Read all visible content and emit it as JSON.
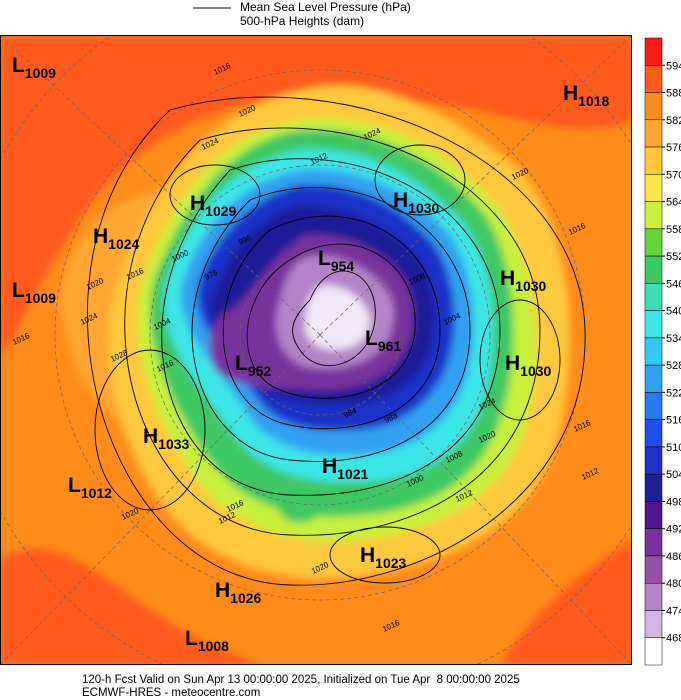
{
  "legend": {
    "pressure": "Mean Sea Level Pressure (hPa)",
    "heights": "500-hPa Heights (dam)"
  },
  "centers": [
    {
      "letter": "L",
      "value": 1009
    },
    {
      "letter": "H",
      "value": 1018
    },
    {
      "letter": "H",
      "value": 1029
    },
    {
      "letter": "H",
      "value": 1030
    },
    {
      "letter": "H",
      "value": 1024
    },
    {
      "letter": "L",
      "value": 954
    },
    {
      "letter": "H",
      "value": 1030
    },
    {
      "letter": "L",
      "value": 1009
    },
    {
      "letter": "L",
      "value": 961
    },
    {
      "letter": "L",
      "value": 952
    },
    {
      "letter": "H",
      "value": 1030
    },
    {
      "letter": "H",
      "value": 1033
    },
    {
      "letter": "H",
      "value": 1021
    },
    {
      "letter": "L",
      "value": 1012
    },
    {
      "letter": "H",
      "value": 1023
    },
    {
      "letter": "H",
      "value": 1026
    },
    {
      "letter": "L",
      "value": 1008
    }
  ],
  "contour_labels": [
    1016,
    1020,
    1024,
    1012,
    1024,
    1020,
    1016,
    1020,
    1016,
    1024,
    1028,
    1016,
    1016,
    1004,
    1000,
    976,
    996,
    1004,
    1008,
    1024,
    1020,
    1016,
    1012,
    1008,
    1000,
    1012,
    988,
    984,
    1020,
    1016,
    1020,
    1016,
    1012
  ],
  "colorbar": {
    "ticks": [
      594,
      588,
      582,
      576,
      570,
      564,
      558,
      552,
      546,
      540,
      534,
      528,
      522,
      516,
      510,
      504,
      498,
      492,
      486,
      480,
      474,
      468
    ],
    "colors": [
      "#ff1a1a",
      "#ff5a1a",
      "#ff8c1a",
      "#ffa632",
      "#ffc83c",
      "#ffe646",
      "#c8f03c",
      "#64d23c",
      "#3cc864",
      "#3cdcb4",
      "#3ce6e6",
      "#32c8f0",
      "#32a0f0",
      "#2878f0",
      "#1e50e6",
      "#1e32c8",
      "#1e1e96",
      "#50148c",
      "#78329b",
      "#9650aa",
      "#b482c8",
      "#d2b4e1",
      "#ffffff"
    ]
  },
  "footer": {
    "valid": "120-h Fcst Valid on Sun Apr 13 00:00:00 2025, Initialized on Tue Apr  8 00:00:00 2025",
    "source": "ECMWF-HRES - meteocentre.com"
  }
}
